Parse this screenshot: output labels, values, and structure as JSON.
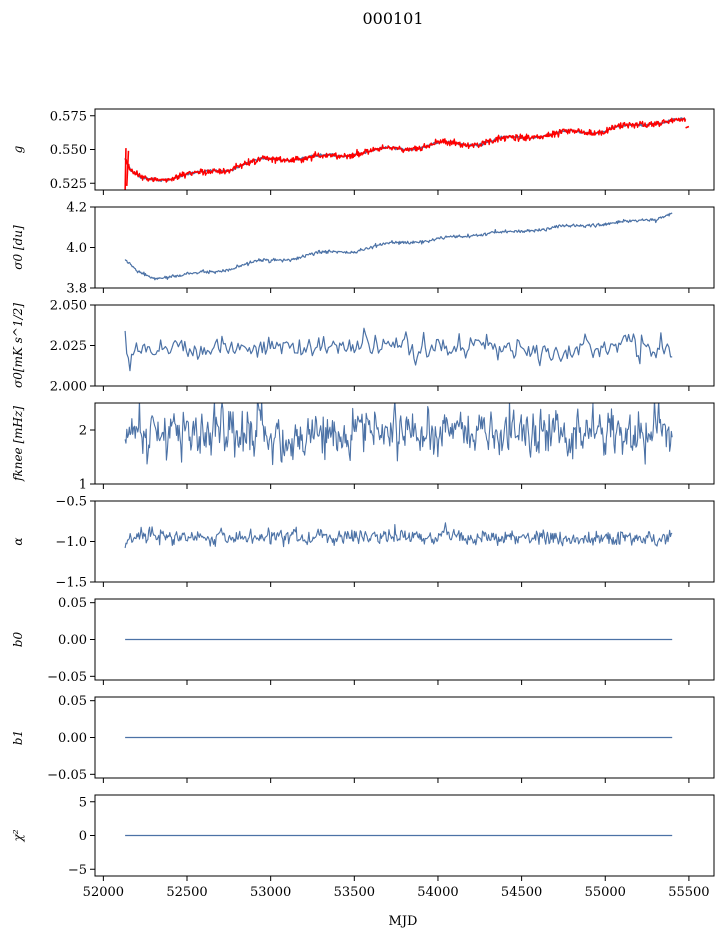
{
  "figure": {
    "title": "000101",
    "xlabel": "MJD"
  },
  "colors": {
    "series": "#4c72a6",
    "highlight": "#ff0000",
    "axis": "#000000"
  },
  "chart_data": [
    {
      "type": "line",
      "ylabel": "g",
      "xlim": [
        51950,
        55650
      ],
      "ylim": [
        0.52,
        0.58
      ],
      "yticks": [
        0.525,
        0.55,
        0.575
      ],
      "ytick_labels": [
        "0.525",
        "0.550",
        "0.575"
      ],
      "show_xtick_labels": false,
      "series": [
        {
          "kind": "smooth",
          "trend": [
            [
              52130,
              0.543
            ],
            [
              52160,
              0.534
            ],
            [
              52230,
              0.527
            ],
            [
              52330,
              0.528
            ],
            [
              52450,
              0.531
            ],
            [
              52600,
              0.532
            ],
            [
              52750,
              0.536
            ],
            [
              52850,
              0.54
            ],
            [
              53000,
              0.542
            ],
            [
              53150,
              0.544
            ],
            [
              53300,
              0.544
            ],
            [
              53400,
              0.545
            ],
            [
              53500,
              0.548
            ],
            [
              53650,
              0.549
            ],
            [
              53800,
              0.551
            ],
            [
              54000,
              0.554
            ],
            [
              54150,
              0.554
            ],
            [
              54300,
              0.556
            ],
            [
              54450,
              0.558
            ],
            [
              54600,
              0.561
            ],
            [
              54750,
              0.562
            ],
            [
              54900,
              0.563
            ],
            [
              55050,
              0.566
            ],
            [
              55200,
              0.567
            ],
            [
              55300,
              0.571
            ],
            [
              55400,
              0.572
            ],
            [
              55480,
              0.571
            ]
          ],
          "wiggle": 0.0018,
          "noise": 0.0004,
          "n": 500,
          "width": 1.6
        },
        {
          "kind": "smooth",
          "trend": [
            [
              52130,
              0.543
            ],
            [
              52160,
              0.534
            ],
            [
              52230,
              0.527
            ],
            [
              52330,
              0.528
            ],
            [
              52450,
              0.531
            ],
            [
              52600,
              0.532
            ],
            [
              52750,
              0.536
            ],
            [
              52850,
              0.54
            ],
            [
              53000,
              0.542
            ],
            [
              53150,
              0.544
            ],
            [
              53300,
              0.544
            ],
            [
              53400,
              0.545
            ],
            [
              53500,
              0.548
            ],
            [
              53650,
              0.549
            ],
            [
              53800,
              0.551
            ],
            [
              54000,
              0.554
            ],
            [
              54150,
              0.554
            ],
            [
              54300,
              0.556
            ],
            [
              54450,
              0.558
            ],
            [
              54600,
              0.561
            ],
            [
              54750,
              0.562
            ],
            [
              54900,
              0.563
            ],
            [
              55050,
              0.566
            ],
            [
              55200,
              0.567
            ],
            [
              55300,
              0.571
            ],
            [
              55400,
              0.572
            ],
            [
              55480,
              0.571
            ]
          ],
          "wiggle": 0.0018,
          "noise": 0.0012,
          "n": 900,
          "width": 1.4,
          "color": "highlight",
          "spikes": [
            [
              52130,
              0.519
            ],
            [
              52135,
              0.551
            ],
            [
              52140,
              0.523
            ],
            [
              52150,
              0.549
            ],
            [
              55480,
              0.566
            ],
            [
              55500,
              0.567
            ]
          ]
        }
      ]
    },
    {
      "type": "line",
      "ylabel": "σ0 [du]",
      "xlim": [
        51950,
        55650
      ],
      "ylim": [
        3.8,
        4.2
      ],
      "yticks": [
        3.8,
        4.0,
        4.2
      ],
      "ytick_labels": [
        "3.8",
        "4.0",
        "4.2"
      ],
      "show_xtick_labels": false,
      "series": [
        {
          "kind": "smooth",
          "trend": [
            [
              52130,
              3.94
            ],
            [
              52200,
              3.88
            ],
            [
              52300,
              3.845
            ],
            [
              52500,
              3.87
            ],
            [
              52700,
              3.88
            ],
            [
              52900,
              3.93
            ],
            [
              53100,
              3.94
            ],
            [
              53300,
              3.975
            ],
            [
              53500,
              3.98
            ],
            [
              53700,
              4.02
            ],
            [
              53900,
              4.03
            ],
            [
              54100,
              4.05
            ],
            [
              54300,
              4.07
            ],
            [
              54500,
              4.08
            ],
            [
              54700,
              4.1
            ],
            [
              54900,
              4.11
            ],
            [
              55100,
              4.125
            ],
            [
              55300,
              4.14
            ],
            [
              55400,
              4.17
            ]
          ],
          "wiggle": 0.004,
          "noise": 0.004,
          "n": 700,
          "width": 1.2
        }
      ]
    },
    {
      "type": "line",
      "ylabel": "σ0[mK s^1/2]",
      "xlim": [
        51950,
        55650
      ],
      "ylim": [
        2.0,
        2.05
      ],
      "yticks": [
        2.0,
        2.025,
        2.05
      ],
      "ytick_labels": [
        "2.000",
        "2.025",
        "2.050"
      ],
      "show_xtick_labels": false,
      "series": [
        {
          "kind": "noise",
          "x_range": [
            52130,
            55400
          ],
          "mean": 2.024,
          "sd": 0.0035,
          "n": 340,
          "width": 1.2,
          "start": [
            2.034,
            2.02
          ],
          "end": [
            2.018,
            2.018
          ]
        }
      ]
    },
    {
      "type": "line",
      "ylabel": "fknee [mHz]",
      "xlim": [
        51950,
        55650
      ],
      "ylim": [
        1.0,
        2.5
      ],
      "yticks": [
        1,
        2
      ],
      "ytick_labels": [
        "1",
        "2"
      ],
      "show_xtick_labels": false,
      "series": [
        {
          "kind": "noise",
          "x_range": [
            52130,
            55400
          ],
          "mean": 1.95,
          "sd": 0.22,
          "n": 650,
          "width": 1.1,
          "clip": [
            1.15,
            2.55
          ]
        }
      ]
    },
    {
      "type": "line",
      "ylabel": "α",
      "xlim": [
        51950,
        55650
      ],
      "ylim": [
        -1.5,
        -0.5
      ],
      "yticks": [
        -1.5,
        -1.0,
        -0.5
      ],
      "ytick_labels": [
        "−1.5",
        "−1.0",
        "−0.5"
      ],
      "show_xtick_labels": false,
      "series": [
        {
          "kind": "noise",
          "x_range": [
            52130,
            55400
          ],
          "mean": -0.95,
          "sd": 0.045,
          "n": 650,
          "width": 1.1,
          "start": [
            -1.08,
            -1.02
          ]
        }
      ]
    },
    {
      "type": "line",
      "ylabel": "b0",
      "xlim": [
        51950,
        55650
      ],
      "ylim": [
        -0.055,
        0.055
      ],
      "yticks": [
        -0.05,
        0.0,
        0.05
      ],
      "ytick_labels": [
        "−0.05",
        "0.00",
        "0.05"
      ],
      "show_xtick_labels": false,
      "series": [
        {
          "kind": "flat",
          "x_range": [
            52130,
            55400
          ],
          "value": 0.0,
          "width": 1.2
        }
      ]
    },
    {
      "type": "line",
      "ylabel": "b1",
      "xlim": [
        51950,
        55650
      ],
      "ylim": [
        -0.055,
        0.055
      ],
      "yticks": [
        -0.05,
        0.0,
        0.05
      ],
      "ytick_labels": [
        "−0.05",
        "0.00",
        "0.05"
      ],
      "show_xtick_labels": false,
      "series": [
        {
          "kind": "flat",
          "x_range": [
            52130,
            55400
          ],
          "value": 0.0,
          "width": 1.2
        }
      ]
    },
    {
      "type": "line",
      "ylabel": "χ²",
      "xlim": [
        51950,
        55650
      ],
      "ylim": [
        -6,
        6
      ],
      "yticks": [
        -5,
        0,
        5
      ],
      "ytick_labels": [
        "−5",
        "0",
        "5"
      ],
      "show_xtick_labels": true,
      "xticks": [
        52000,
        52500,
        53000,
        53500,
        54000,
        54500,
        55000,
        55500
      ],
      "xtick_labels": [
        "52000",
        "52500",
        "53000",
        "53500",
        "54000",
        "54500",
        "55000",
        "55500"
      ],
      "series": [
        {
          "kind": "flat",
          "x_range": [
            52130,
            55400
          ],
          "value": 0.0,
          "width": 1.2
        }
      ]
    }
  ]
}
